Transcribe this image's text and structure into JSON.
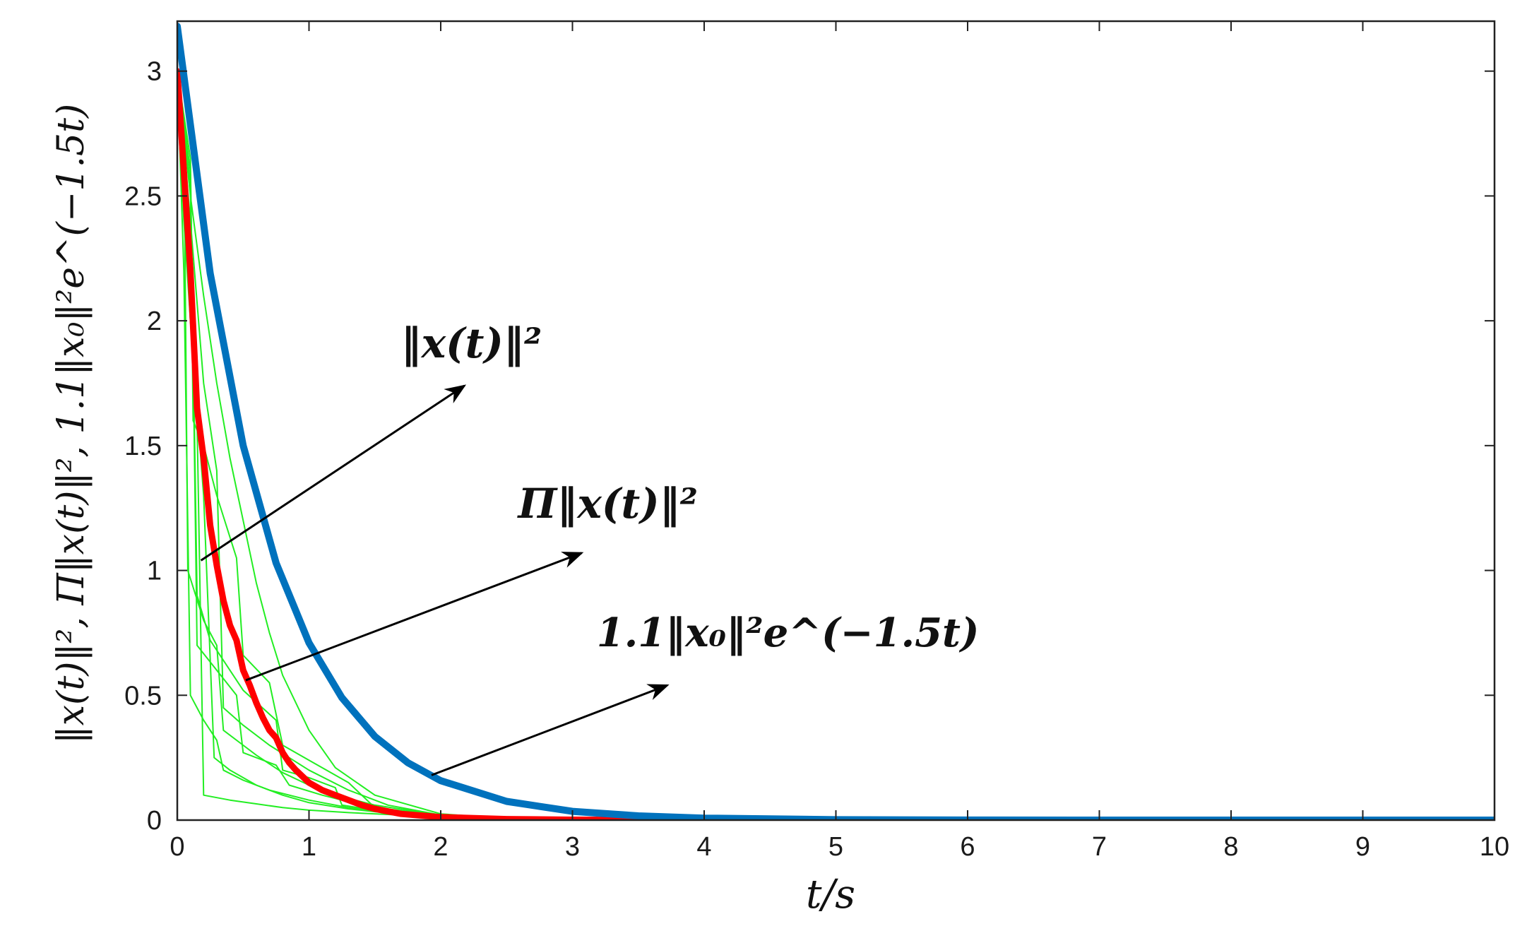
{
  "chart_data": {
    "type": "line",
    "title": "",
    "xlabel": "t/s",
    "ylabel": "‖x(t)‖², Π‖x(t)‖², 1.1‖x₀‖²e^(−1.5t)",
    "xlim": [
      0,
      10
    ],
    "ylim": [
      0,
      3.2
    ],
    "x_ticks": [
      "0",
      "1",
      "2",
      "3",
      "4",
      "5",
      "6",
      "7",
      "8",
      "9",
      "10"
    ],
    "y_ticks": [
      "0",
      "0.5",
      "1",
      "1.5",
      "2",
      "2.5",
      "3"
    ],
    "grid": false,
    "colors": {
      "blue": "#0072BD",
      "red": "#FF0000",
      "green": "#22EE22",
      "axis": "#222222"
    },
    "annotations": [
      {
        "text": "‖x(t)‖²",
        "arrow_from": [
          0.18,
          1.04
        ],
        "arrow_to": [
          2.18,
          1.74
        ]
      },
      {
        "text": "Π‖x(t)‖²",
        "arrow_from": [
          0.52,
          0.56
        ],
        "arrow_to": [
          3.07,
          1.07
        ]
      },
      {
        "text": "1.1‖x₀‖²e^(−1.5t)",
        "arrow_from": [
          1.93,
          0.18
        ],
        "arrow_to": [
          3.72,
          0.54
        ]
      }
    ],
    "series": [
      {
        "color": "#0072BD",
        "x": [
          0,
          0.25,
          0.5,
          0.75,
          1,
          1.25,
          1.5,
          1.75,
          2,
          2.5,
          3,
          3.5,
          4,
          5,
          6,
          7,
          8,
          9,
          10
        ],
        "y": [
          3.18,
          2.19,
          1.5,
          1.03,
          0.71,
          0.49,
          0.335,
          0.23,
          0.158,
          0.075,
          0.035,
          0.017,
          0.008,
          0.0018,
          0.0004,
          0,
          0,
          0,
          0
        ]
      },
      {
        "color": "#FF0000",
        "x": [
          0,
          0.05,
          0.1,
          0.15,
          0.2,
          0.25,
          0.3,
          0.35,
          0.4,
          0.45,
          0.5,
          0.55,
          0.6,
          0.65,
          0.7,
          0.75,
          0.8,
          0.85,
          0.9,
          1.0,
          1.1,
          1.2,
          1.3,
          1.4,
          1.5,
          1.7,
          2.0,
          2.5,
          3,
          4,
          5,
          6
        ],
        "y": [
          3.0,
          2.6,
          2.2,
          1.65,
          1.45,
          1.18,
          1.02,
          0.88,
          0.78,
          0.72,
          0.6,
          0.54,
          0.47,
          0.41,
          0.36,
          0.33,
          0.27,
          0.23,
          0.2,
          0.15,
          0.12,
          0.1,
          0.08,
          0.06,
          0.045,
          0.025,
          0.012,
          0.004,
          0.0015,
          0,
          0,
          0
        ]
      },
      {
        "color": "#22EE22",
        "x": [
          0,
          0.05,
          0.1,
          0.2,
          0.3,
          0.4,
          0.5,
          0.6,
          0.7,
          0.8,
          1.0,
          1.2,
          1.5,
          2.0,
          2.5
        ],
        "y": [
          3.0,
          2.75,
          2.5,
          2.1,
          1.75,
          1.45,
          1.2,
          0.95,
          0.75,
          0.58,
          0.36,
          0.21,
          0.1,
          0.025,
          0.006
        ]
      },
      {
        "color": "#22EE22",
        "x": [
          0,
          0.1,
          0.12,
          0.2,
          0.3,
          0.45,
          0.5,
          0.7,
          0.8,
          1.0,
          1.3,
          1.5,
          2.0
        ],
        "y": [
          3.0,
          2.55,
          1.6,
          1.5,
          1.3,
          1.05,
          0.66,
          0.55,
          0.3,
          0.24,
          0.15,
          0.05,
          0.02
        ]
      },
      {
        "color": "#22EE22",
        "x": [
          0,
          0.1,
          0.15,
          0.25,
          0.4,
          0.5,
          0.75,
          0.8,
          1.0,
          1.2,
          1.25,
          1.5,
          2.0
        ],
        "y": [
          3.0,
          2.6,
          0.9,
          0.72,
          0.6,
          0.52,
          0.4,
          0.2,
          0.17,
          0.13,
          0.06,
          0.04,
          0.01
        ]
      },
      {
        "color": "#22EE22",
        "x": [
          0,
          0.05,
          0.08,
          0.2,
          0.3,
          0.35,
          0.5,
          0.6,
          0.8,
          1.0,
          1.2,
          1.5,
          2.0
        ],
        "y": [
          3.0,
          2.8,
          1.0,
          0.8,
          0.7,
          0.36,
          0.3,
          0.26,
          0.19,
          0.14,
          0.1,
          0.06,
          0.02
        ]
      },
      {
        "color": "#22EE22",
        "x": [
          0,
          0.1,
          0.15,
          0.3,
          0.45,
          0.5,
          0.75,
          0.85,
          1.1,
          1.25,
          1.4,
          1.6,
          2.2
        ],
        "y": [
          3.0,
          2.65,
          0.7,
          0.6,
          0.5,
          0.27,
          0.22,
          0.14,
          0.1,
          0.08,
          0.055,
          0.035,
          0.01
        ]
      },
      {
        "color": "#22EE22",
        "x": [
          0,
          0.05,
          0.1,
          0.2,
          0.3,
          0.35,
          0.5,
          0.7,
          1.0,
          1.3,
          1.6,
          2.0
        ],
        "y": [
          3.0,
          2.2,
          0.5,
          0.4,
          0.32,
          0.2,
          0.16,
          0.12,
          0.08,
          0.05,
          0.03,
          0.015
        ]
      },
      {
        "color": "#22EE22",
        "x": [
          0,
          0.1,
          0.2,
          0.28,
          0.4,
          0.6,
          0.8,
          1.0,
          1.3,
          1.6,
          2.0
        ],
        "y": [
          3.0,
          2.0,
          1.3,
          0.25,
          0.2,
          0.14,
          0.1,
          0.07,
          0.045,
          0.028,
          0.015
        ]
      },
      {
        "color": "#22EE22",
        "x": [
          0,
          0.05,
          0.15,
          0.2,
          0.4,
          0.6,
          0.8,
          1.0,
          1.3,
          1.7,
          2.2
        ],
        "y": [
          3.0,
          2.4,
          1.6,
          0.1,
          0.08,
          0.065,
          0.05,
          0.04,
          0.03,
          0.02,
          0.01
        ]
      },
      {
        "color": "#22EE22",
        "x": [
          0,
          0.1,
          0.2,
          0.3,
          0.35,
          0.5,
          0.7,
          1.0,
          1.3,
          1.6,
          2.0
        ],
        "y": [
          3.0,
          2.4,
          1.75,
          1.4,
          0.45,
          0.38,
          0.3,
          0.2,
          0.12,
          0.06,
          0.02
        ]
      }
    ]
  }
}
